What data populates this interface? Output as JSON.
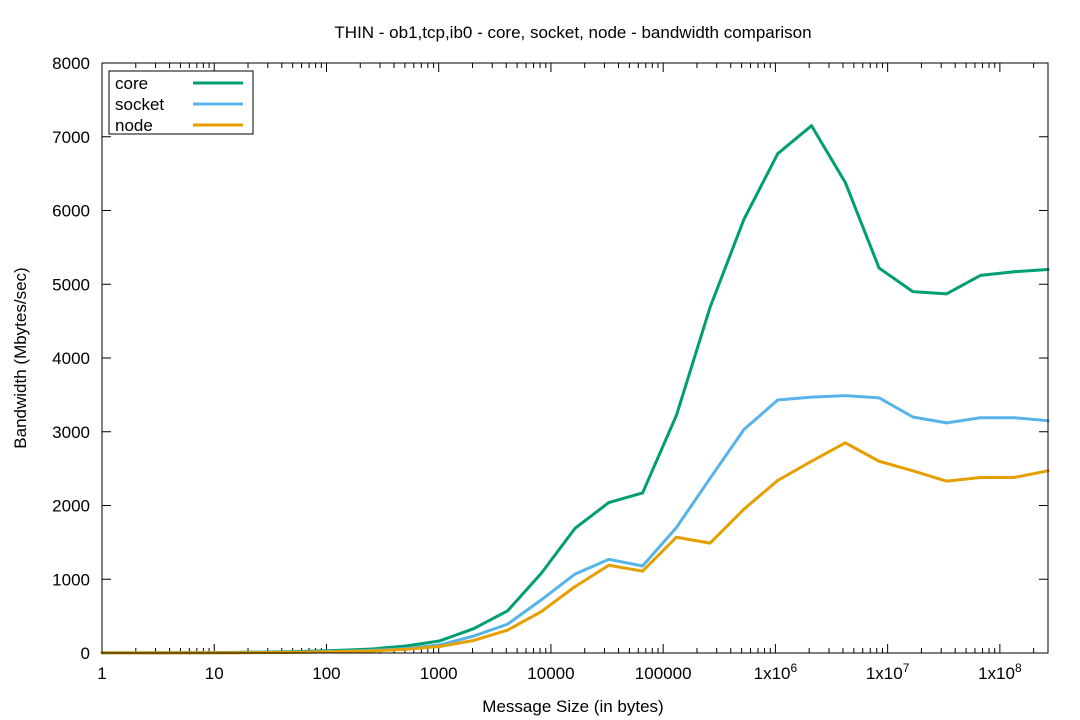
{
  "chart_data": {
    "type": "line",
    "title": "THIN - ob1,tcp,ib0 - core, socket, node - bandwidth comparison",
    "xlabel": "Message Size (in bytes)",
    "ylabel": "Bandwidth (Mbytes/sec)",
    "x_scale": "log",
    "xlim": [
      1,
      268435456
    ],
    "ylim": [
      0,
      8000
    ],
    "grid": false,
    "legend_position": "top-left",
    "x_ticks": [
      {
        "value": 1,
        "label": "1"
      },
      {
        "value": 10,
        "label": "10"
      },
      {
        "value": 100,
        "label": "100"
      },
      {
        "value": 1000,
        "label": "1000"
      },
      {
        "value": 10000,
        "label": "10000"
      },
      {
        "value": 100000,
        "label": "100000"
      },
      {
        "value": 1000000,
        "label": "1x10",
        "exp": "6"
      },
      {
        "value": 10000000,
        "label": "1x10",
        "exp": "7"
      },
      {
        "value": 100000000,
        "label": "1x10",
        "exp": "8"
      }
    ],
    "y_ticks": [
      0,
      1000,
      2000,
      3000,
      4000,
      5000,
      6000,
      7000,
      8000
    ],
    "x": [
      1,
      2,
      4,
      8,
      16,
      32,
      64,
      128,
      256,
      512,
      1024,
      2048,
      4096,
      8192,
      16384,
      32768,
      65536,
      131072,
      262144,
      524288,
      1048576,
      2097152,
      4194304,
      8388608,
      16777216,
      33554432,
      67108864,
      134217728,
      268435456
    ],
    "series": [
      {
        "name": "core",
        "color": "#009e73",
        "values": [
          1,
          2,
          3,
          5,
          8,
          14,
          22,
          35,
          55,
          95,
          165,
          330,
          570,
          1080,
          1690,
          2040,
          2170,
          3220,
          4690,
          5880,
          6770,
          7150,
          6380,
          5220,
          4900,
          4870,
          5120,
          5170,
          5200
        ]
      },
      {
        "name": "socket",
        "color": "#56b4e9",
        "values": [
          1,
          1,
          2,
          3,
          5,
          9,
          14,
          22,
          35,
          60,
          110,
          230,
          390,
          720,
          1070,
          1270,
          1180,
          1700,
          2370,
          3030,
          3430,
          3470,
          3490,
          3460,
          3200,
          3120,
          3190,
          3190,
          3150
        ]
      },
      {
        "name": "node",
        "color": "#e69f00",
        "values": [
          1,
          1,
          2,
          3,
          4,
          7,
          11,
          18,
          28,
          50,
          90,
          170,
          310,
          560,
          900,
          1190,
          1110,
          1570,
          1490,
          1950,
          2340,
          2600,
          2850,
          2600,
          2470,
          2330,
          2380,
          2380,
          2470
        ]
      }
    ]
  }
}
